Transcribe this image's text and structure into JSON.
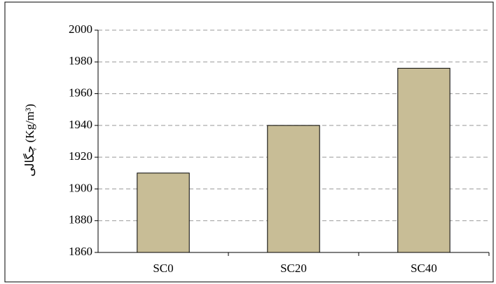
{
  "chart_data": {
    "type": "bar",
    "y_label": "چگالی (Kg/m³)",
    "categories": [
      "SC0",
      "SC20",
      "SC40"
    ],
    "values": [
      1910,
      1940,
      1976
    ],
    "color": "#c8bd96",
    "ylim": [
      1860,
      2000
    ],
    "yticks": [
      1860,
      1880,
      1900,
      1920,
      1940,
      1960,
      1980,
      2000
    ],
    "grid": true
  }
}
